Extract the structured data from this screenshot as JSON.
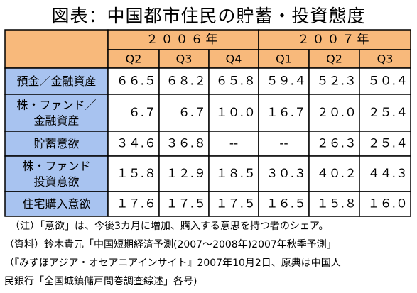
{
  "title": "図表：中国都市住民の貯蓄・投資態度",
  "colors": {
    "header_bg": "#f8b97b",
    "label_bg": "#a8c3f0",
    "cell_bg": "#ffffff",
    "border": "#000000"
  },
  "chart_data": {
    "type": "table",
    "title": "図表：中国都市住民の貯蓄・投資態度",
    "years": [
      {
        "label": "２００６年",
        "span": 3
      },
      {
        "label": "２００７年",
        "span": 3
      }
    ],
    "quarters": [
      "Q2",
      "Q3",
      "Q4",
      "Q1",
      "Q2",
      "Q3"
    ],
    "rows": [
      {
        "label": [
          "預金／金融資産"
        ],
        "values": [
          "６６.５",
          "６８.２",
          "６５.８",
          "５９.４",
          "５２.３",
          "５０.４"
        ]
      },
      {
        "label": [
          "株・ファンド／",
          "金融資産"
        ],
        "values": [
          "６.７",
          "６.７",
          "１０.０",
          "１６.７",
          "２０.０",
          "２５.４"
        ]
      },
      {
        "label": [
          "貯蓄意欲"
        ],
        "values": [
          "３４.６",
          "３６.８",
          "--",
          "--",
          "２６.３",
          "２５.４"
        ]
      },
      {
        "label": [
          "株・ファンド",
          "投資意欲"
        ],
        "values": [
          "１５.８",
          "１２.９",
          "１８.５",
          "３０.３",
          "４０.２",
          "４４.３"
        ]
      },
      {
        "label": [
          "住宅購入意欲"
        ],
        "values": [
          "１７.６",
          "１７.５",
          "１７.５",
          "１６.５",
          "１５.８",
          "１６.０"
        ]
      }
    ]
  },
  "notes": [
    "（注）「意欲」は、今後3カ月に増加、購入する意思を持つ者のシェア。",
    "（資料）鈴木貴元「中国短期経済予測(2007〜2008年)2007年秋季予測」",
    "（『みずほアジア・オセアニアインサイト』2007年10月2日、原典は中国人",
    "民銀行「全国城鎮儲戸問巻調査綜述」各号)"
  ]
}
